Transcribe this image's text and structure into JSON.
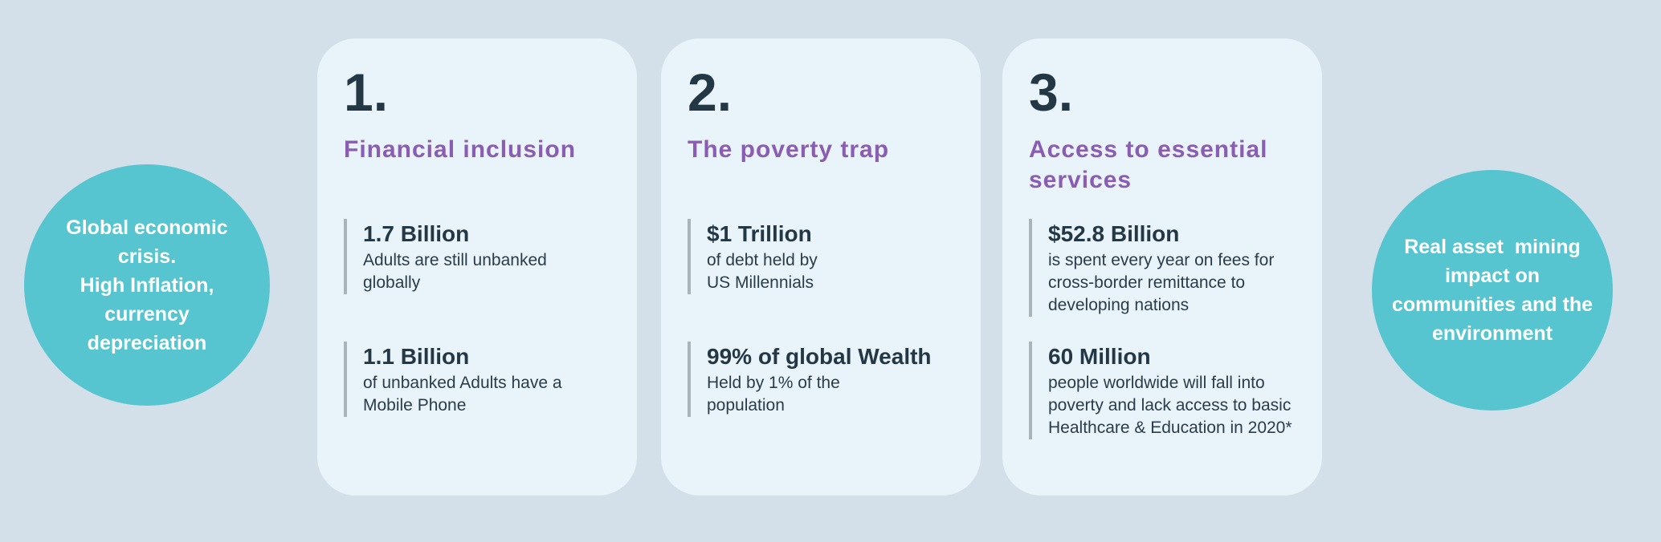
{
  "colors": {
    "background": "#d3e0ea",
    "card_background": "#e9f4fa",
    "circle_teal": "#57c5d0",
    "heading_purple": "#8a5db3",
    "text_dark": "#243744",
    "stat_bar_gray": "#a9b4ba"
  },
  "left_circle": {
    "text": "Global economic\ncrisis.\nHigh Inflation,\ncurrency\ndepreciation"
  },
  "right_circle": {
    "text": "Real asset  mining\nimpact on\ncommunities and the\nenvironment"
  },
  "cards": [
    {
      "number": "1.",
      "title": "Financial inclusion",
      "stats": [
        {
          "value": "1.7 Billion",
          "description": "Adults are still unbanked\nglobally"
        },
        {
          "value": "1.1 Billion",
          "description": "of unbanked Adults have a\nMobile Phone"
        }
      ]
    },
    {
      "number": "2.",
      "title": "The poverty trap",
      "stats": [
        {
          "value": "$1 Trillion",
          "description": "of debt held by\nUS Millennials"
        },
        {
          "value": "99% of global Wealth",
          "description": "Held by 1% of the\npopulation"
        }
      ]
    },
    {
      "number": "3.",
      "title": "Access to essential\nservices",
      "stats": [
        {
          "value": "$52.8 Billion",
          "description": "is spent every year on fees for\ncross-border remittance to\ndeveloping nations"
        },
        {
          "value": "60 Million",
          "description": "people worldwide will fall into\npoverty and lack access to basic\nHealthcare & Education in 2020*"
        }
      ]
    }
  ]
}
